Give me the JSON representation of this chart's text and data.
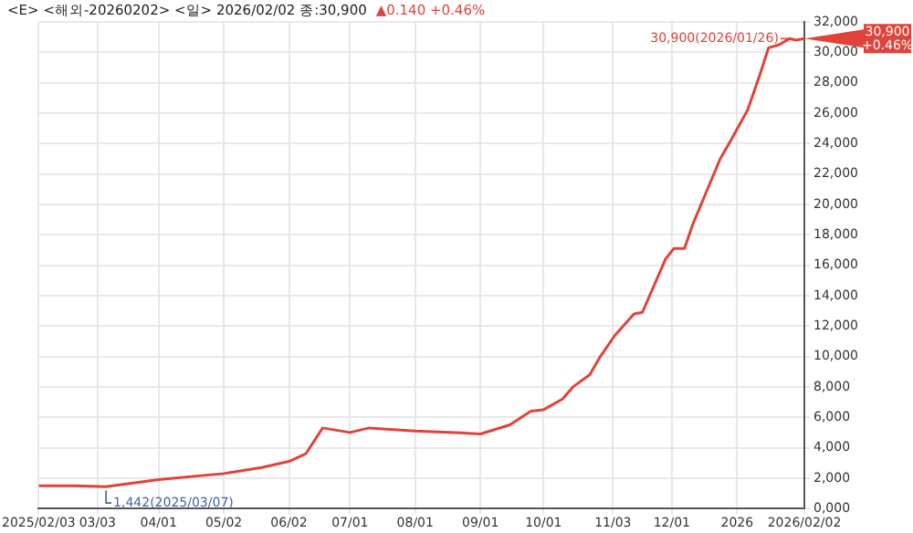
{
  "chart_data": {
    "type": "line",
    "title": "<E> <해외-20260202> <일> 2026/02/02 종:30,900",
    "subtitle": "▲0.140 +0.46%",
    "x": [
      "2025-02-03",
      "2025-02-20",
      "2025-03-07",
      "2025-04-01",
      "2025-05-02",
      "2025-05-20",
      "2025-06-02",
      "2025-06-10",
      "2025-06-18",
      "2025-07-01",
      "2025-07-10",
      "2025-08-01",
      "2025-08-20",
      "2025-09-01",
      "2025-09-15",
      "2025-09-25",
      "2025-10-01",
      "2025-10-10",
      "2025-10-15",
      "2025-10-23",
      "2025-10-28",
      "2025-11-04",
      "2025-11-13",
      "2025-11-17",
      "2025-11-28",
      "2025-12-02",
      "2025-12-07",
      "2025-12-11",
      "2025-12-24",
      "2025-12-29",
      "2026-01-02",
      "2026-01-06",
      "2026-01-12",
      "2026-01-16",
      "2026-01-21",
      "2026-01-26",
      "2026-01-29",
      "2026-02-02"
    ],
    "series": [
      {
        "color": "#e0433a",
        "values": [
          1500,
          1500,
          1442,
          1900,
          2300,
          2700,
          3100,
          3600,
          5300,
          5000,
          5300,
          5100,
          5000,
          4900,
          5500,
          6400,
          6500,
          7200,
          8000,
          8800,
          10000,
          11400,
          12800,
          12900,
          16400,
          17100,
          17100,
          18700,
          23000,
          24200,
          25200,
          26200,
          28600,
          30300,
          30500,
          30900,
          30800,
          30900
        ]
      }
    ],
    "xlim": [
      "2025-02-03",
      "2026-02-02"
    ],
    "xticks": [
      {
        "value": "2025-02-03",
        "label": "2025/02/03"
      },
      {
        "value": "2025-03-03",
        "label": "03/03"
      },
      {
        "value": "2025-04-01",
        "label": "04/01"
      },
      {
        "value": "2025-05-02",
        "label": "05/02"
      },
      {
        "value": "2025-06-02",
        "label": "06/02"
      },
      {
        "value": "2025-07-01",
        "label": "07/01"
      },
      {
        "value": "2025-08-01",
        "label": "08/01"
      },
      {
        "value": "2025-09-01",
        "label": "09/01"
      },
      {
        "value": "2025-10-01",
        "label": "10/01"
      },
      {
        "value": "2025-11-03",
        "label": "11/03"
      },
      {
        "value": "2025-12-01",
        "label": "12/01"
      },
      {
        "value": "2026-01-01",
        "label": "2026"
      },
      {
        "value": "2026-02-02",
        "label": "2026/02/02"
      }
    ],
    "ylim": [
      0,
      32000
    ],
    "yticks": [
      {
        "value": 0,
        "label": "0,000"
      },
      {
        "value": 2000,
        "label": "2,000"
      },
      {
        "value": 4000,
        "label": "4,000"
      },
      {
        "value": 6000,
        "label": "6,000"
      },
      {
        "value": 8000,
        "label": "8,000"
      },
      {
        "value": 10000,
        "label": "10,000"
      },
      {
        "value": 12000,
        "label": "12,000"
      },
      {
        "value": 14000,
        "label": "14,000"
      },
      {
        "value": 16000,
        "label": "16,000"
      },
      {
        "value": 18000,
        "label": "18,000"
      },
      {
        "value": 20000,
        "label": "20,000"
      },
      {
        "value": 22000,
        "label": "22,000"
      },
      {
        "value": 24000,
        "label": "24,000"
      },
      {
        "value": 26000,
        "label": "26,000"
      },
      {
        "value": 28000,
        "label": "28,000"
      },
      {
        "value": 30000,
        "label": "30,000"
      },
      {
        "value": 32000,
        "label": "32,000"
      }
    ],
    "grid": true,
    "legend": false,
    "marker": "none",
    "line_style": "solid",
    "annotations": [
      {
        "text": "30,900(2026/01/26)",
        "x": "2026-01-26",
        "y": 30900
      },
      {
        "text": "1,442(2025/03/07)",
        "x": "2025-03-07",
        "y": 1442
      },
      {
        "text": "30,900 +0.46%",
        "x": "2026-02-02",
        "y": 30900
      }
    ]
  }
}
